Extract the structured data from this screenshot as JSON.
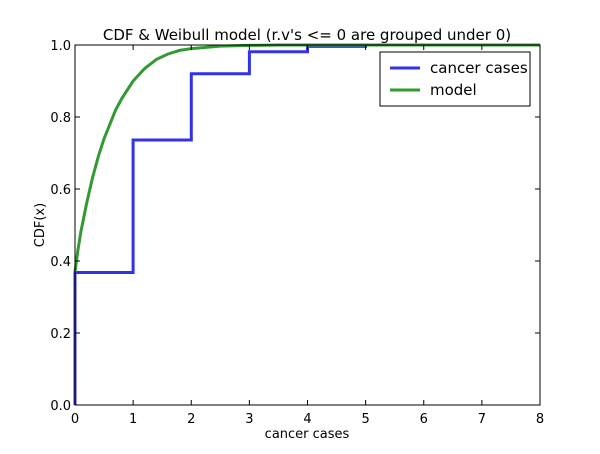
{
  "chart_data": {
    "type": "line",
    "title": "CDF & Weibull model (r.v's <= 0 are grouped under 0)",
    "xlabel": "cancer cases",
    "ylabel": "CDF(x)",
    "xlim": [
      0,
      8
    ],
    "ylim": [
      0,
      1.0
    ],
    "xticks": [
      "0",
      "1",
      "2",
      "3",
      "4",
      "5",
      "6",
      "7",
      "8"
    ],
    "yticks": [
      "0.0",
      "0.2",
      "0.4",
      "0.6",
      "0.8",
      "1.0"
    ],
    "grid": false,
    "legend_position": "upper right",
    "series": [
      {
        "name": "cancer cases",
        "color": "#3333e6",
        "style": "step",
        "x": [
          0,
          0,
          1,
          1,
          2,
          2,
          3,
          3,
          4,
          4,
          5,
          5,
          8
        ],
        "y": [
          0,
          0.368,
          0.368,
          0.736,
          0.736,
          0.92,
          0.92,
          0.981,
          0.981,
          0.996,
          0.996,
          1.0,
          1.0
        ]
      },
      {
        "name": "model",
        "color": "#339933",
        "style": "line",
        "x": [
          0,
          0.05,
          0.1,
          0.2,
          0.3,
          0.4,
          0.5,
          0.6,
          0.7,
          0.8,
          0.9,
          1.0,
          1.2,
          1.4,
          1.6,
          1.8,
          2.0,
          2.5,
          3.0,
          3.5,
          4.0,
          5.0,
          6.0,
          7.0,
          8.0
        ],
        "y": [
          0.37,
          0.43,
          0.48,
          0.56,
          0.63,
          0.69,
          0.74,
          0.78,
          0.82,
          0.85,
          0.875,
          0.9,
          0.935,
          0.96,
          0.975,
          0.985,
          0.99,
          0.997,
          0.999,
          1.0,
          1.0,
          1.0,
          1.0,
          1.0,
          1.0
        ]
      }
    ]
  }
}
